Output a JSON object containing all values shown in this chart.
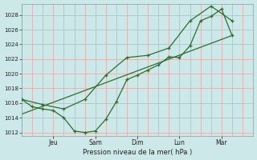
{
  "background_color": "#cce8e8",
  "grid_color": "#ddb8b8",
  "line_color": "#2d6e2d",
  "xlabel": "Pression niveau de la mer( hPa )",
  "ylim": [
    1011.5,
    1029.5
  ],
  "yticks": [
    1012,
    1014,
    1016,
    1018,
    1020,
    1022,
    1024,
    1026,
    1028
  ],
  "xlim": [
    0,
    22
  ],
  "xtick_positions": [
    3,
    7,
    11,
    15,
    19
  ],
  "xtick_labels": [
    "Jeu",
    "Sam",
    "Dim",
    "Lun",
    "Mar"
  ],
  "vline_positions": [
    3,
    7,
    11,
    15,
    19
  ],
  "line1_x": [
    0,
    1,
    2,
    3,
    4,
    5,
    6,
    7,
    8,
    9,
    10,
    11,
    12,
    13,
    14,
    15,
    16,
    17,
    18,
    19,
    20
  ],
  "line1_y": [
    1016.5,
    1015.5,
    1015.2,
    1015.0,
    1014.0,
    1012.2,
    1012.0,
    1012.2,
    1013.8,
    1016.2,
    1019.2,
    1019.8,
    1020.5,
    1021.2,
    1022.3,
    1022.2,
    1023.8,
    1027.2,
    1027.8,
    1028.8,
    1025.2
  ],
  "line2_x": [
    0,
    2,
    4,
    6,
    8,
    10,
    12,
    14,
    16,
    18,
    20
  ],
  "line2_y": [
    1016.5,
    1015.8,
    1015.2,
    1016.5,
    1019.8,
    1022.2,
    1022.5,
    1023.5,
    1027.2,
    1029.2,
    1027.2
  ],
  "line3_x": [
    0,
    20
  ],
  "line3_y": [
    1014.5,
    1025.2
  ]
}
